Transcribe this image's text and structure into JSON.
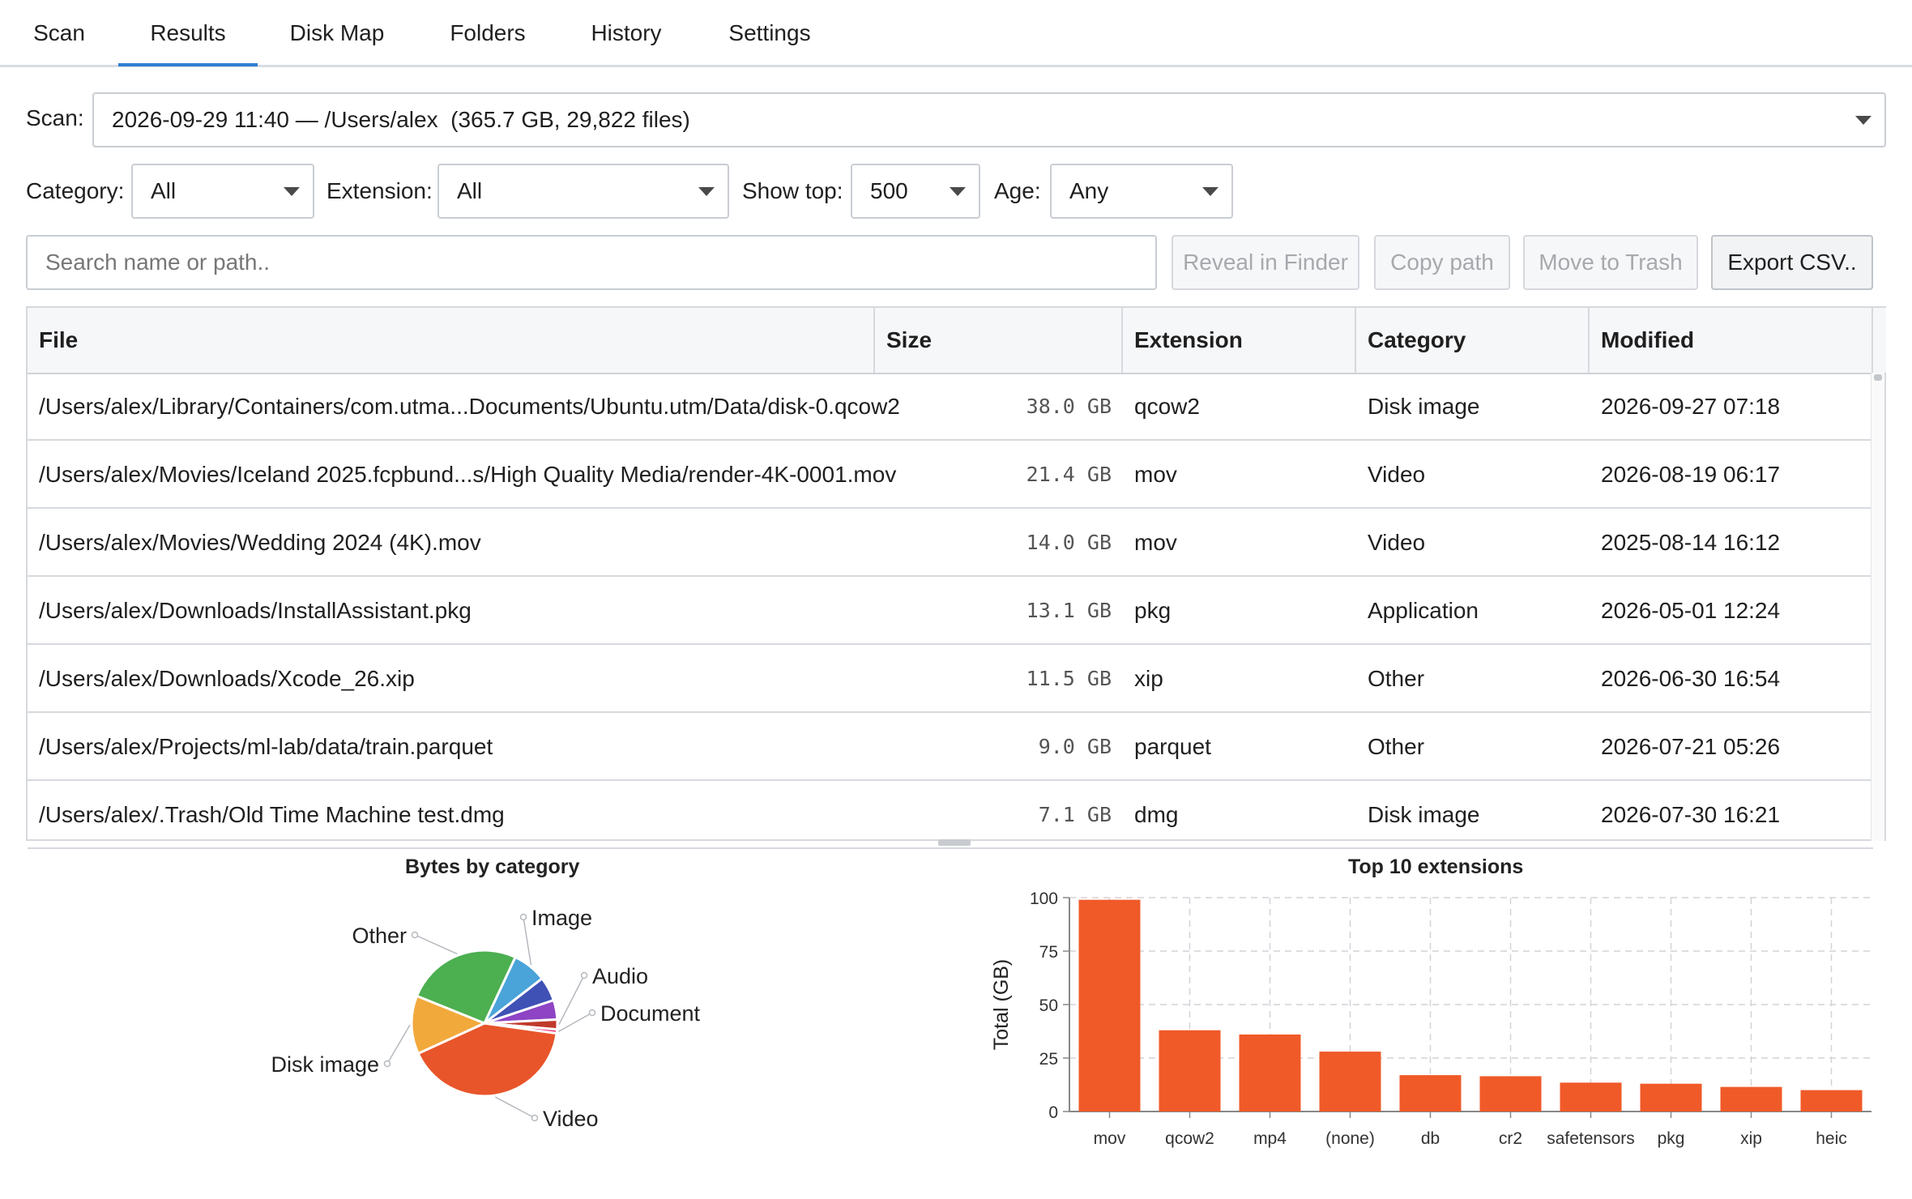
{
  "tabs": [
    {
      "label": "Scan"
    },
    {
      "label": "Results"
    },
    {
      "label": "Disk Map"
    },
    {
      "label": "Folders"
    },
    {
      "label": "History"
    },
    {
      "label": "Settings"
    }
  ],
  "active_tab": "Results",
  "scan": {
    "label": "Scan:",
    "value": "2026-09-29 11:40 — /Users/alex  (365.7 GB, 29,822 files)"
  },
  "filters": {
    "category_label": "Category:",
    "category_value": "All",
    "extension_label": "Extension:",
    "extension_value": "All",
    "show_top_label": "Show top:",
    "show_top_value": "500",
    "age_label": "Age:",
    "age_value": "Any"
  },
  "search": {
    "placeholder": "Search name or path.."
  },
  "actions": {
    "reveal": "Reveal in Finder",
    "copy_path": "Copy path",
    "trash": "Move to Trash",
    "export": "Export CSV.."
  },
  "table": {
    "headers": {
      "file": "File",
      "size": "Size",
      "extension": "Extension",
      "category": "Category",
      "modified": "Modified"
    },
    "rows": [
      {
        "file": "/Users/alex/Library/Containers/com.utma...Documents/Ubuntu.utm/Data/disk-0.qcow2",
        "size": "38.0 GB",
        "extension": "qcow2",
        "category": "Disk image",
        "modified": "2026-09-27 07:18"
      },
      {
        "file": "/Users/alex/Movies/Iceland 2025.fcpbund...s/High Quality Media/render-4K-0001.mov",
        "size": "21.4 GB",
        "extension": "mov",
        "category": "Video",
        "modified": "2026-08-19 06:17"
      },
      {
        "file": "/Users/alex/Movies/Wedding 2024 (4K).mov",
        "size": "14.0 GB",
        "extension": "mov",
        "category": "Video",
        "modified": "2025-08-14 16:12"
      },
      {
        "file": "/Users/alex/Downloads/InstallAssistant.pkg",
        "size": "13.1 GB",
        "extension": "pkg",
        "category": "Application",
        "modified": "2026-05-01 12:24"
      },
      {
        "file": "/Users/alex/Downloads/Xcode_26.xip",
        "size": "11.5 GB",
        "extension": "xip",
        "category": "Other",
        "modified": "2026-06-30 16:54"
      },
      {
        "file": "/Users/alex/Projects/ml-lab/data/train.parquet",
        "size": "9.0 GB",
        "extension": "parquet",
        "category": "Other",
        "modified": "2026-07-21 05:26"
      },
      {
        "file": "/Users/alex/.Trash/Old Time Machine test.dmg",
        "size": "7.1 GB",
        "extension": "dmg",
        "category": "Disk image",
        "modified": "2026-07-30 16:21"
      }
    ]
  },
  "chart_data": [
    {
      "type": "pie",
      "title": "Bytes by category",
      "slices": [
        {
          "label": "Video",
          "value": 38,
          "color": "#e8552a"
        },
        {
          "label": "Disk image",
          "value": 12,
          "color": "#f2a93b"
        },
        {
          "label": "Other",
          "value": 24,
          "color": "#4caf50"
        },
        {
          "label": "Image",
          "value": 7,
          "color": "#4aa3d9"
        },
        {
          "label": "",
          "value": 5,
          "color": "#3f51b5"
        },
        {
          "label": "",
          "value": 4,
          "color": "#8e44c4"
        },
        {
          "label": "Audio",
          "value": 2,
          "color": "#c0392b"
        },
        {
          "label": "Document",
          "value": 0.8,
          "color": "#ec407a"
        }
      ]
    },
    {
      "type": "bar",
      "title": "Top 10 extensions",
      "ylabel": "Total (GB)",
      "xlabel": "",
      "ylim": [
        0,
        100
      ],
      "yticks": [
        0,
        25,
        50,
        75,
        100
      ],
      "grid": true,
      "color": "#f05a28",
      "categories": [
        "mov",
        "qcow2",
        "mp4",
        "(none)",
        "db",
        "cr2",
        "safetensors",
        "pkg",
        "xip",
        "heic"
      ],
      "values": [
        99,
        38,
        36,
        28,
        17,
        16.5,
        13.5,
        13,
        11.5,
        10
      ]
    }
  ]
}
